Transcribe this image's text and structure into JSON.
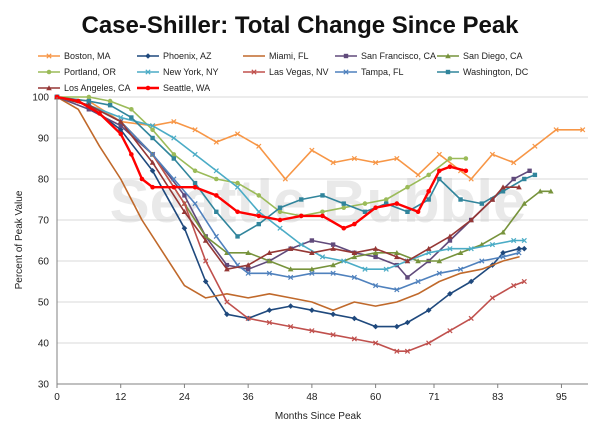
{
  "chart_data": {
    "type": "line",
    "title": "Case-Shiller: Total Change Since Peak",
    "xlabel": "Months Since Peak",
    "ylabel": "Percent of Peak Value",
    "watermark": "Seattle Bubble",
    "xlim": [
      0,
      100
    ],
    "ylim": [
      30,
      100
    ],
    "x_ticks": [
      0,
      12,
      24,
      36,
      48,
      60,
      71,
      83,
      95
    ],
    "y_ticks": [
      30,
      40,
      50,
      60,
      70,
      80,
      90,
      100
    ],
    "grid": "horizontal",
    "legend_position": "top",
    "series": [
      {
        "name": "Boston, MA",
        "color": "#f79646",
        "marker": "cross",
        "points": [
          [
            0,
            100
          ],
          [
            6,
            99
          ],
          [
            12,
            94
          ],
          [
            18,
            93
          ],
          [
            22,
            94
          ],
          [
            26,
            92
          ],
          [
            30,
            89
          ],
          [
            34,
            91
          ],
          [
            38,
            88
          ],
          [
            43,
            80
          ],
          [
            48,
            87
          ],
          [
            52,
            84
          ],
          [
            56,
            85
          ],
          [
            60,
            84
          ],
          [
            64,
            85
          ],
          [
            68,
            81
          ],
          [
            72,
            86
          ],
          [
            76,
            82
          ],
          [
            78,
            80
          ],
          [
            82,
            86
          ],
          [
            86,
            84
          ],
          [
            90,
            88
          ],
          [
            94,
            92
          ],
          [
            99,
            92
          ]
        ]
      },
      {
        "name": "Phoenix, AZ",
        "color": "#1f497d",
        "marker": "diamond",
        "points": [
          [
            0,
            100
          ],
          [
            6,
            98
          ],
          [
            12,
            92
          ],
          [
            18,
            82
          ],
          [
            24,
            68
          ],
          [
            28,
            55
          ],
          [
            32,
            47
          ],
          [
            36,
            46
          ],
          [
            40,
            48
          ],
          [
            44,
            49
          ],
          [
            48,
            48
          ],
          [
            52,
            47
          ],
          [
            56,
            46
          ],
          [
            60,
            44
          ],
          [
            64,
            44
          ],
          [
            66,
            45
          ],
          [
            70,
            48
          ],
          [
            74,
            52
          ],
          [
            78,
            55
          ],
          [
            82,
            59
          ],
          [
            84,
            62
          ],
          [
            87,
            63
          ],
          [
            88,
            63
          ]
        ]
      },
      {
        "name": "Miami, FL",
        "color": "#c0692b",
        "marker": "none",
        "points": [
          [
            0,
            100
          ],
          [
            4,
            97
          ],
          [
            8,
            88
          ],
          [
            12,
            80
          ],
          [
            16,
            70
          ],
          [
            20,
            62
          ],
          [
            24,
            54
          ],
          [
            28,
            51
          ],
          [
            32,
            52
          ],
          [
            36,
            51
          ],
          [
            40,
            52
          ],
          [
            44,
            51
          ],
          [
            48,
            50
          ],
          [
            52,
            48
          ],
          [
            56,
            50
          ],
          [
            60,
            49
          ],
          [
            64,
            50
          ],
          [
            68,
            52
          ],
          [
            72,
            55
          ],
          [
            76,
            57
          ],
          [
            80,
            58
          ],
          [
            84,
            60
          ],
          [
            87,
            61
          ]
        ]
      },
      {
        "name": "San Francisco, CA",
        "color": "#604a7b",
        "marker": "square",
        "points": [
          [
            0,
            100
          ],
          [
            6,
            97
          ],
          [
            12,
            93
          ],
          [
            18,
            86
          ],
          [
            24,
            76
          ],
          [
            28,
            66
          ],
          [
            32,
            59
          ],
          [
            36,
            58
          ],
          [
            40,
            60
          ],
          [
            44,
            63
          ],
          [
            48,
            65
          ],
          [
            52,
            64
          ],
          [
            56,
            62
          ],
          [
            60,
            61
          ],
          [
            64,
            59
          ],
          [
            66,
            56
          ],
          [
            70,
            60
          ],
          [
            74,
            65
          ],
          [
            78,
            70
          ],
          [
            82,
            75
          ],
          [
            86,
            80
          ],
          [
            89,
            82
          ]
        ]
      },
      {
        "name": "San Diego, CA",
        "color": "#77933c",
        "marker": "triangle",
        "points": [
          [
            0,
            100
          ],
          [
            6,
            98
          ],
          [
            12,
            94
          ],
          [
            18,
            86
          ],
          [
            24,
            74
          ],
          [
            28,
            66
          ],
          [
            32,
            62
          ],
          [
            36,
            62
          ],
          [
            40,
            60
          ],
          [
            44,
            58
          ],
          [
            48,
            58
          ],
          [
            52,
            59
          ],
          [
            56,
            61
          ],
          [
            60,
            62
          ],
          [
            64,
            62
          ],
          [
            68,
            60
          ],
          [
            72,
            60
          ],
          [
            76,
            62
          ],
          [
            80,
            64
          ],
          [
            84,
            67
          ],
          [
            88,
            74
          ],
          [
            91,
            77
          ],
          [
            93,
            77
          ]
        ]
      },
      {
        "name": "Portland, OR",
        "color": "#9bbb59",
        "marker": "circle",
        "points": [
          [
            0,
            100
          ],
          [
            6,
            100
          ],
          [
            10,
            99
          ],
          [
            14,
            97
          ],
          [
            18,
            92
          ],
          [
            22,
            86
          ],
          [
            26,
            82
          ],
          [
            30,
            80
          ],
          [
            34,
            79
          ],
          [
            38,
            76
          ],
          [
            42,
            72
          ],
          [
            46,
            71
          ],
          [
            50,
            72
          ],
          [
            54,
            73
          ],
          [
            58,
            74
          ],
          [
            62,
            75
          ],
          [
            66,
            78
          ],
          [
            70,
            81
          ],
          [
            74,
            85
          ],
          [
            77,
            85
          ]
        ]
      },
      {
        "name": "New York, NY",
        "color": "#4bacc6",
        "marker": "cross",
        "points": [
          [
            0,
            100
          ],
          [
            6,
            98
          ],
          [
            12,
            95
          ],
          [
            18,
            93
          ],
          [
            22,
            90
          ],
          [
            26,
            86
          ],
          [
            30,
            82
          ],
          [
            34,
            78
          ],
          [
            38,
            72
          ],
          [
            42,
            68
          ],
          [
            46,
            64
          ],
          [
            50,
            61
          ],
          [
            54,
            60
          ],
          [
            58,
            58
          ],
          [
            62,
            58
          ],
          [
            66,
            60
          ],
          [
            70,
            62
          ],
          [
            74,
            63
          ],
          [
            78,
            63
          ],
          [
            82,
            64
          ],
          [
            86,
            65
          ],
          [
            88,
            65
          ]
        ]
      },
      {
        "name": "Las Vegas, NV",
        "color": "#c0504d",
        "marker": "cross",
        "points": [
          [
            0,
            100
          ],
          [
            6,
            98
          ],
          [
            12,
            94
          ],
          [
            18,
            86
          ],
          [
            24,
            74
          ],
          [
            28,
            60
          ],
          [
            32,
            50
          ],
          [
            36,
            46
          ],
          [
            40,
            45
          ],
          [
            44,
            44
          ],
          [
            48,
            43
          ],
          [
            52,
            42
          ],
          [
            56,
            41
          ],
          [
            60,
            40
          ],
          [
            64,
            38
          ],
          [
            66,
            38
          ],
          [
            70,
            40
          ],
          [
            74,
            43
          ],
          [
            78,
            46
          ],
          [
            82,
            51
          ],
          [
            86,
            54
          ],
          [
            88,
            55
          ]
        ]
      },
      {
        "name": "Tampa, FL",
        "color": "#4f81bd",
        "marker": "cross",
        "points": [
          [
            0,
            100
          ],
          [
            6,
            98
          ],
          [
            12,
            94
          ],
          [
            18,
            86
          ],
          [
            22,
            80
          ],
          [
            26,
            74
          ],
          [
            30,
            66
          ],
          [
            34,
            59
          ],
          [
            36,
            57
          ],
          [
            40,
            57
          ],
          [
            44,
            56
          ],
          [
            48,
            57
          ],
          [
            52,
            57
          ],
          [
            56,
            56
          ],
          [
            60,
            54
          ],
          [
            64,
            53
          ],
          [
            68,
            55
          ],
          [
            72,
            57
          ],
          [
            76,
            58
          ],
          [
            80,
            60
          ],
          [
            84,
            61
          ],
          [
            87,
            62
          ]
        ]
      },
      {
        "name": "Washington, DC",
        "color": "#31859c",
        "marker": "square",
        "points": [
          [
            0,
            100
          ],
          [
            6,
            99
          ],
          [
            10,
            98
          ],
          [
            14,
            95
          ],
          [
            18,
            90
          ],
          [
            22,
            85
          ],
          [
            26,
            79
          ],
          [
            30,
            72
          ],
          [
            34,
            66
          ],
          [
            38,
            69
          ],
          [
            42,
            73
          ],
          [
            46,
            75
          ],
          [
            50,
            76
          ],
          [
            54,
            74
          ],
          [
            58,
            72
          ],
          [
            62,
            74
          ],
          [
            66,
            72
          ],
          [
            70,
            75
          ],
          [
            72,
            80
          ],
          [
            76,
            75
          ],
          [
            80,
            74
          ],
          [
            84,
            77
          ],
          [
            88,
            80
          ],
          [
            90,
            81
          ]
        ]
      },
      {
        "name": "Los Angeles, CA",
        "color": "#953735",
        "marker": "triangle",
        "points": [
          [
            0,
            100
          ],
          [
            6,
            98
          ],
          [
            12,
            94
          ],
          [
            18,
            84
          ],
          [
            24,
            72
          ],
          [
            28,
            65
          ],
          [
            32,
            58
          ],
          [
            36,
            59
          ],
          [
            40,
            62
          ],
          [
            44,
            63
          ],
          [
            48,
            62
          ],
          [
            52,
            63
          ],
          [
            56,
            62
          ],
          [
            60,
            63
          ],
          [
            64,
            61
          ],
          [
            66,
            60
          ],
          [
            70,
            63
          ],
          [
            74,
            66
          ],
          [
            78,
            70
          ],
          [
            82,
            75
          ],
          [
            84,
            78
          ],
          [
            87,
            78
          ]
        ]
      },
      {
        "name": "Seattle, WA",
        "color": "#ff0000",
        "marker": "circle",
        "points": [
          [
            0,
            100
          ],
          [
            4,
            99
          ],
          [
            8,
            96
          ],
          [
            12,
            91
          ],
          [
            14,
            86
          ],
          [
            16,
            80
          ],
          [
            18,
            78
          ],
          [
            22,
            78
          ],
          [
            26,
            78
          ],
          [
            30,
            76
          ],
          [
            34,
            72
          ],
          [
            38,
            71
          ],
          [
            42,
            70
          ],
          [
            46,
            71
          ],
          [
            50,
            71
          ],
          [
            54,
            68
          ],
          [
            56,
            69
          ],
          [
            60,
            73
          ],
          [
            64,
            74
          ],
          [
            68,
            72
          ],
          [
            70,
            77
          ],
          [
            72,
            82
          ],
          [
            74,
            83
          ],
          [
            77,
            82
          ]
        ]
      }
    ]
  }
}
